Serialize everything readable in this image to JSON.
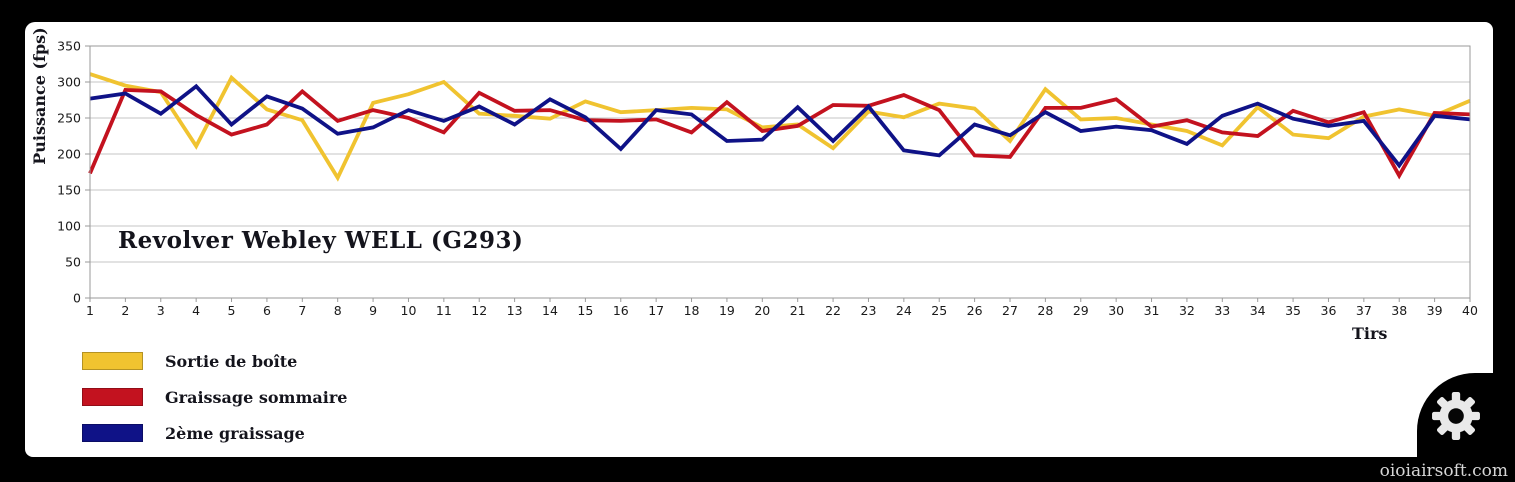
{
  "watermark": "oioiairsoft.com",
  "chart_data": {
    "type": "line",
    "title": "Revolver Webley WELL (G293)",
    "xlabel": "Tirs",
    "ylabel": "Puissance (fps)",
    "x": [
      1,
      2,
      3,
      4,
      5,
      6,
      7,
      8,
      9,
      10,
      11,
      12,
      13,
      14,
      15,
      16,
      17,
      18,
      19,
      20,
      21,
      22,
      23,
      24,
      25,
      26,
      27,
      28,
      29,
      30,
      31,
      32,
      33,
      34,
      35,
      36,
      37,
      38,
      39,
      40
    ],
    "ylim": [
      0,
      350
    ],
    "ytick_step": 50,
    "grid": true,
    "legend_position": "bottom-left",
    "series": [
      {
        "name": "Sortie de boîte",
        "color": "#F0C330",
        "values": [
          311,
          295,
          286,
          211,
          306,
          262,
          247,
          167,
          271,
          283,
          300,
          256,
          253,
          249,
          273,
          258,
          261,
          264,
          262,
          237,
          241,
          208,
          259,
          251,
          270,
          263,
          218,
          290,
          248,
          250,
          241,
          232,
          212,
          265,
          227,
          222,
          252,
          262,
          253,
          274
        ]
      },
      {
        "name": "Graissage sommaire",
        "color": "#C3121F",
        "values": [
          173,
          289,
          287,
          254,
          227,
          241,
          287,
          246,
          261,
          250,
          230,
          285,
          260,
          261,
          247,
          246,
          248,
          230,
          272,
          232,
          239,
          268,
          267,
          282,
          261,
          198,
          196,
          264,
          264,
          276,
          238,
          247,
          230,
          225,
          260,
          244,
          258,
          170,
          257,
          255
        ]
      },
      {
        "name": "2ème graissage",
        "color": "#0F1287",
        "values": [
          277,
          284,
          256,
          294,
          241,
          280,
          263,
          228,
          237,
          261,
          246,
          266,
          241,
          276,
          251,
          207,
          261,
          255,
          218,
          220,
          265,
          218,
          266,
          205,
          198,
          241,
          226,
          258,
          232,
          238,
          233,
          214,
          253,
          270,
          249,
          239,
          246,
          184,
          253,
          248
        ]
      }
    ]
  }
}
